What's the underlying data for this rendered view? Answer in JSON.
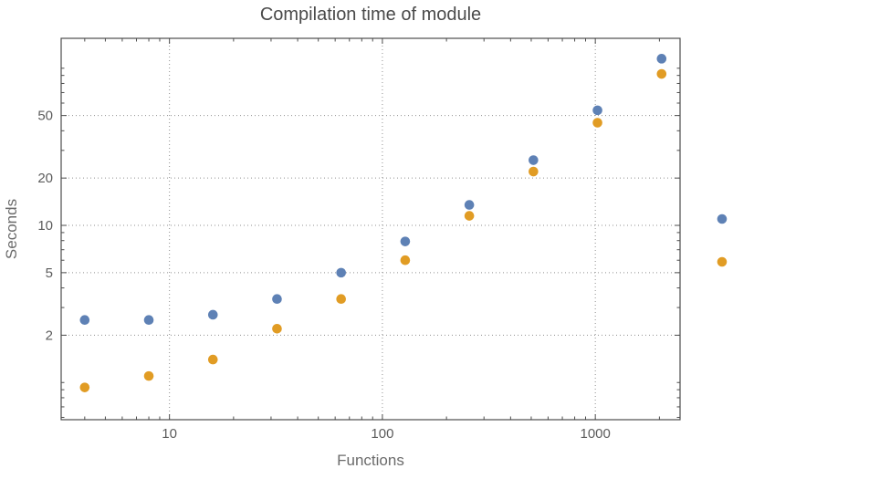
{
  "chart_data": {
    "type": "scatter",
    "title": "Compilation time of module",
    "xlabel": "Functions",
    "ylabel": "Seconds",
    "x_scale": "log",
    "y_scale": "log",
    "grid": "dotted",
    "x": [
      4,
      8,
      16,
      32,
      64,
      128,
      256,
      512,
      1024,
      2048
    ],
    "series": [
      {
        "name": "blue",
        "color": "#5E81B5",
        "values": [
          2.5,
          2.5,
          2.7,
          3.4,
          5.0,
          7.9,
          13.5,
          26,
          54,
          115
        ]
      },
      {
        "name": "orange",
        "color": "#E19C24",
        "values": [
          0.93,
          1.1,
          1.4,
          2.2,
          3.4,
          6.0,
          11.5,
          22,
          45,
          92
        ]
      }
    ],
    "x_ticks": [
      10,
      100,
      1000
    ],
    "y_ticks": [
      2,
      5,
      10,
      20,
      50
    ],
    "xlim": [
      3.1,
      2500
    ],
    "ylim": [
      0.58,
      155
    ],
    "legend_position": "right",
    "legend_markers": [
      {
        "color": "#5E81B5"
      },
      {
        "color": "#E19C24"
      }
    ]
  },
  "style": {
    "background": "#ffffff",
    "point_blue": "#5E81B5",
    "point_orange": "#E19C24",
    "grid": "#909090",
    "frame": "#4d4d4d",
    "tick_label": "#5c5c5c",
    "title_color": "#4a4a4a",
    "axis_label_color": "#6b6b6b"
  }
}
